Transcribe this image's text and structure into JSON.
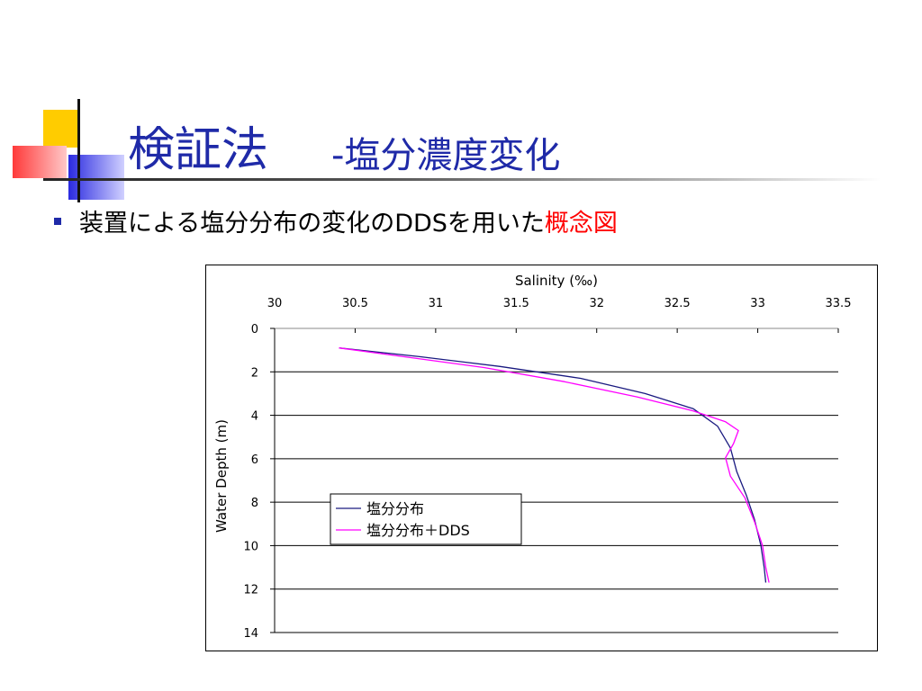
{
  "slide": {
    "title": "検証法",
    "subtitle": "-塩分濃度変化",
    "bullet": {
      "text": "装置による塩分分布の変化のDDSを用いた",
      "highlight": "概念図",
      "highlight_color": "#ff0000"
    },
    "colors": {
      "title": "#1f2aa8",
      "deco_yellow": "#ffcc00",
      "deco_blue": "#2a2ae0",
      "deco_red": "#ff4444"
    }
  },
  "chart_data": {
    "type": "line",
    "xlabel": "Salinity (‰)",
    "ylabel": "Water Depth (m)",
    "xlim": [
      30,
      33.5
    ],
    "ylim": [
      0,
      14
    ],
    "x_axis_position": "top",
    "y_axis_inverted": true,
    "x_ticks": [
      "30",
      "30.5",
      "31",
      "31.5",
      "32",
      "32.5",
      "33",
      "33.5"
    ],
    "y_ticks": [
      "0",
      "2",
      "4",
      "6",
      "8",
      "10",
      "12",
      "14"
    ],
    "grid": "horizontal",
    "legend_position": "lower-left",
    "series": [
      {
        "name": "塩分分布",
        "color": "#1a1a80",
        "points": [
          [
            30.4,
            0.9
          ],
          [
            30.9,
            1.3
          ],
          [
            31.4,
            1.75
          ],
          [
            31.9,
            2.3
          ],
          [
            32.3,
            3.0
          ],
          [
            32.6,
            3.7
          ],
          [
            32.75,
            4.5
          ],
          [
            32.83,
            5.5
          ],
          [
            32.87,
            6.6
          ],
          [
            32.93,
            7.7
          ],
          [
            32.98,
            8.8
          ],
          [
            33.02,
            10.0
          ],
          [
            33.04,
            11.0
          ],
          [
            33.05,
            11.7
          ]
        ]
      },
      {
        "name": "塩分分布＋DDS",
        "color": "#ff00ff",
        "points": [
          [
            30.4,
            0.9
          ],
          [
            30.8,
            1.3
          ],
          [
            31.3,
            1.8
          ],
          [
            31.8,
            2.45
          ],
          [
            32.25,
            3.15
          ],
          [
            32.6,
            3.8
          ],
          [
            32.8,
            4.3
          ],
          [
            32.88,
            4.7
          ],
          [
            32.85,
            5.3
          ],
          [
            32.8,
            5.95
          ],
          [
            32.83,
            6.8
          ],
          [
            32.92,
            7.8
          ],
          [
            32.98,
            8.9
          ],
          [
            33.03,
            10.0
          ],
          [
            33.05,
            11.0
          ],
          [
            33.07,
            11.7
          ]
        ]
      }
    ]
  }
}
